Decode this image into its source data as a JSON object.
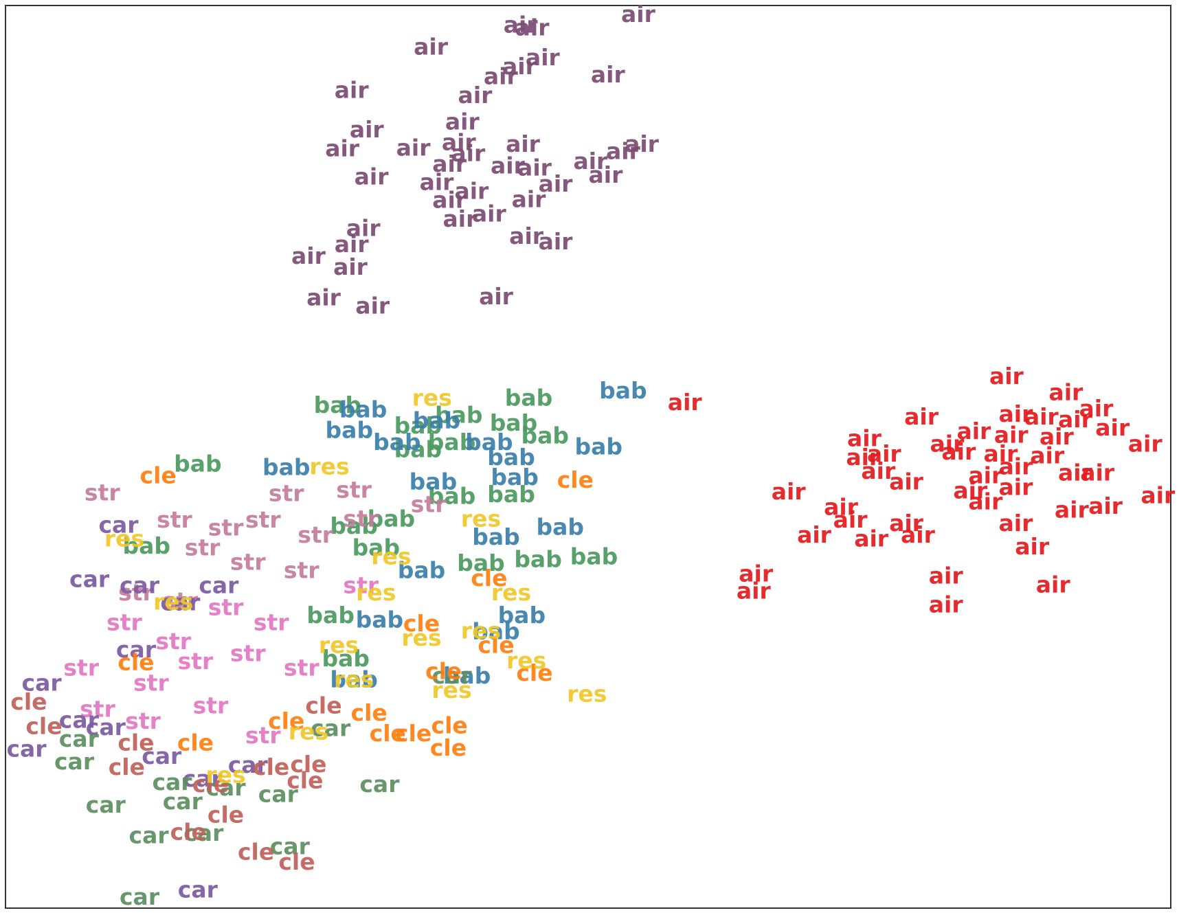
{
  "chart_data": {
    "type": "scatter",
    "xlim": [
      0,
      100
    ],
    "ylim": [
      0,
      100
    ],
    "series": [
      {
        "name": "air",
        "color": "#7b4a72",
        "x": [
          54.3,
          44.2,
          45.2,
          36.5,
          46.1,
          44.1,
          42.5,
          51.7,
          29.7,
          40.3,
          39.2,
          31.0,
          28.9,
          35.0,
          38.9,
          44.4,
          54.6,
          39.7,
          38.1,
          43.1,
          45.4,
          50.2,
          53.0,
          31.4,
          37.0,
          47.2,
          51.5,
          40.0,
          38.1,
          44.9,
          41.5,
          39.0,
          30.7,
          29.7,
          26.0,
          29.6,
          44.7,
          47.2,
          27.3,
          31.5,
          42.1
        ],
        "values": [
          98.9,
          97.7,
          97.4,
          95.3,
          94.1,
          93.1,
          92.0,
          92.2,
          90.5,
          89.9,
          87.0,
          86.1,
          84.0,
          84.1,
          84.7,
          84.5,
          84.5,
          83.5,
          82.3,
          82.1,
          81.9,
          82.6,
          83.7,
          80.9,
          80.3,
          80.1,
          81.1,
          79.3,
          78.3,
          78.4,
          76.8,
          76.2,
          75.2,
          73.4,
          72.1,
          70.9,
          74.3,
          73.7,
          67.5,
          66.6,
          67.6
        ]
      },
      {
        "name": "air",
        "color": "#e31a1c",
        "x": [
          85.9,
          91.0,
          93.6,
          58.3,
          78.6,
          86.7,
          88.9,
          91.8,
          95.0,
          83.1,
          73.7,
          80.8,
          86.3,
          90.2,
          97.8,
          73.6,
          75.4,
          81.8,
          85.4,
          89.4,
          74.9,
          86.7,
          91.8,
          93.7,
          77.3,
          84.1,
          67.2,
          82.8,
          86.7,
          98.9,
          84.1,
          71.7,
          91.5,
          94.4,
          72.5,
          77.3,
          86.7,
          69.4,
          74.3,
          78.3,
          88.1,
          64.4,
          64.2,
          80.7,
          89.9,
          80.7
        ],
        "values": [
          58.8,
          57.0,
          55.2,
          55.9,
          54.3,
          54.6,
          54.3,
          54.0,
          53.1,
          52.7,
          51.9,
          51.3,
          52.3,
          52.1,
          51.3,
          49.8,
          50.2,
          50.4,
          50.2,
          50.0,
          48.3,
          48.8,
          48.1,
          48.1,
          47.1,
          47.8,
          46.0,
          46.1,
          46.5,
          45.6,
          44.9,
          44.3,
          44.0,
          44.4,
          42.9,
          42.5,
          42.5,
          41.2,
          40.8,
          41.2,
          39.9,
          36.9,
          35.0,
          36.7,
          35.7,
          33.5
        ]
      },
      {
        "name": "bab",
        "color": "#4a9a5e",
        "x": [
          28.5,
          44.9,
          38.9,
          35.4,
          43.6,
          46.3,
          16.5,
          35.4,
          38.3,
          43.4,
          12.1,
          50.5,
          45.7,
          40.8,
          31.8,
          29.9,
          33.1,
          38.3,
          27.9,
          29.2
        ],
        "values": [
          55.6,
          56.4,
          54.5,
          53.3,
          53.6,
          52.2,
          49.1,
          50.7,
          51.5,
          45.7,
          40.0,
          38.8,
          38.5,
          38.1,
          39.8,
          42.2,
          43.0,
          45.5,
          32.3,
          27.5
        ]
      },
      {
        "name": "bab",
        "color": "#3a7fab",
        "x": [
          53.0,
          30.7,
          29.5,
          33.6,
          37.0,
          41.5,
          50.9,
          43.4,
          24.1,
          36.7,
          43.7,
          47.6,
          42.1,
          44.3,
          32.1,
          42.1,
          29.9,
          39.6,
          35.7
        ],
        "values": [
          57.2,
          55.1,
          52.8,
          51.5,
          53.9,
          51.5,
          51.0,
          49.8,
          48.7,
          47.1,
          47.6,
          42.1,
          41.0,
          32.3,
          31.8,
          30.5,
          25.2,
          25.6,
          37.3
        ]
      },
      {
        "name": "str",
        "color": "#c47c9a",
        "x": [
          8.3,
          14.5,
          24.1,
          29.9,
          18.9,
          22.1,
          26.6,
          16.9,
          20.8,
          25.4,
          30.5,
          11.2,
          15.0,
          36.3
        ],
        "values": [
          45.9,
          42.9,
          45.8,
          46.2,
          42.0,
          42.9,
          41.2,
          39.8,
          38.2,
          37.3,
          43.0,
          34.8,
          33.9,
          44.6
        ]
      },
      {
        "name": "str",
        "color": "#e377c2",
        "x": [
          18.9,
          22.8,
          10.2,
          6.5,
          16.3,
          20.8,
          25.4,
          7.9,
          12.5,
          11.8,
          17.6,
          22.1,
          14.4,
          30.5
        ],
        "values": [
          33.2,
          31.5,
          31.5,
          26.5,
          27.2,
          28.1,
          26.5,
          21.9,
          24.8,
          20.6,
          22.3,
          19.0,
          29.4,
          35.6
        ]
      },
      {
        "name": "car",
        "color": "#7b5aa0",
        "x": [
          9.7,
          7.2,
          11.5,
          18.3,
          15.0,
          11.2,
          3.1,
          6.3,
          8.6,
          1.8,
          13.4,
          16.9,
          16.5,
          20.8
        ],
        "values": [
          42.3,
          36.3,
          35.6,
          35.6,
          33.7,
          28.5,
          24.8,
          20.7,
          19.9,
          17.5,
          16.7,
          14.2,
          1.9,
          15.7
        ]
      },
      {
        "name": "car",
        "color": "#5b8f5e",
        "x": [
          6.3,
          5.9,
          14.3,
          8.6,
          15.2,
          23.4,
          32.1,
          12.3,
          17.0,
          24.4,
          11.5,
          27.9,
          18.9,
          38.3
        ],
        "values": [
          18.6,
          16.1,
          13.8,
          11.3,
          11.7,
          12.5,
          13.6,
          7.9,
          8.2,
          6.7,
          1.1,
          19.8,
          13.2,
          25.6
        ]
      },
      {
        "name": "cle",
        "color": "#ff7f0e",
        "x": [
          13.1,
          48.9,
          41.5,
          42.1,
          45.4,
          32.8,
          35.0,
          38.1,
          38.0,
          11.2,
          35.7,
          37.6,
          31.2,
          16.3,
          24.1
        ],
        "values": [
          47.8,
          47.3,
          36.4,
          29.0,
          25.9,
          19.2,
          19.2,
          20.1,
          17.6,
          27.1,
          31.4,
          26.1,
          21.5,
          18.2,
          20.6
        ]
      },
      {
        "name": "cle",
        "color": "#c1605a",
        "x": [
          2.0,
          3.3,
          10.4,
          22.8,
          26.0,
          25.7,
          18.9,
          15.7,
          21.5,
          25.0,
          11.2,
          17.6,
          27.3
        ],
        "values": [
          22.7,
          20.0,
          15.5,
          15.5,
          15.8,
          14.0,
          10.2,
          8.3,
          6.1,
          5.0,
          18.2,
          13.6,
          22.3
        ]
      },
      {
        "name": "res",
        "color": "#f0c828",
        "x": [
          36.6,
          27.8,
          10.2,
          49.9,
          44.7,
          26.0,
          40.8,
          35.7,
          43.4,
          31.8,
          28.6,
          40.8,
          14.4,
          18.9,
          38.3,
          33.1,
          29.9
        ],
        "values": [
          56.4,
          48.8,
          40.8,
          23.6,
          27.3,
          19.4,
          30.6,
          29.8,
          34.8,
          34.8,
          29.0,
          43.0,
          33.8,
          14.6,
          24.0,
          38.8,
          25.2
        ]
      }
    ]
  }
}
